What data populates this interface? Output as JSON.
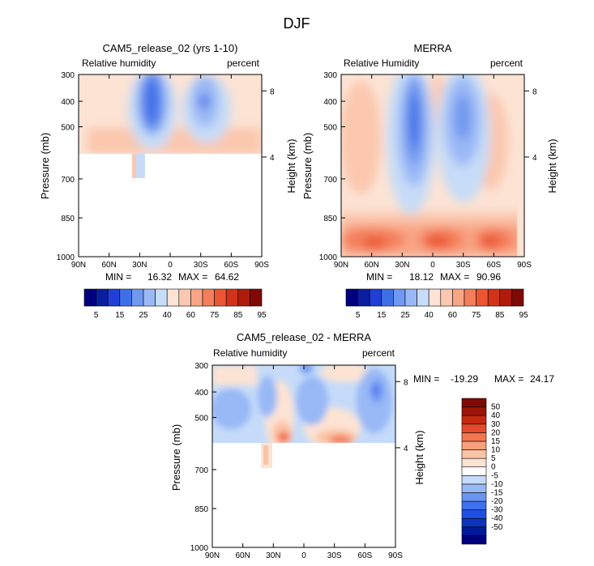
{
  "figure": {
    "title": "DJF"
  },
  "colors": {
    "rh_levels": [
      "#00007f",
      "#0a1fa0",
      "#1f3fd8",
      "#3f6fe8",
      "#6f98f0",
      "#9ab8f5",
      "#c6dcf8",
      "#fce3d4",
      "#fbc7ae",
      "#f8a585",
      "#f47e5a",
      "#ec5533",
      "#d4321a",
      "#b01c0c",
      "#7f0a04"
    ],
    "diff_levels": [
      "#00007f",
      "#001a99",
      "#0d33bb",
      "#1f4fe0",
      "#3f70ee",
      "#6b95f2",
      "#98b8f6",
      "#c5dbf9",
      "#ffffff",
      "#fde3d3",
      "#fbc3a6",
      "#f89f7c",
      "#f37552",
      "#e64a2c",
      "#c52a10",
      "#9b1504",
      "#7f0a04"
    ]
  },
  "chart_data": [
    {
      "type": "heatmap",
      "panel": "cam5",
      "title": "CAM5_release_02 (yrs 1-10)",
      "left_label": "Relative humidity",
      "right_label": "percent",
      "xlabel": "",
      "ylabel": "Pressure (mb)",
      "y2label": "Height (km)",
      "xticks": [
        "90N",
        "60N",
        "30N",
        "0",
        "30S",
        "60S",
        "90S"
      ],
      "yticks": [
        "300",
        "400",
        "500",
        "700",
        "850",
        "1000"
      ],
      "y2ticks": [
        "8",
        "4"
      ],
      "x_range": [
        90,
        -90
      ],
      "y_range": [
        300,
        1000
      ],
      "stats": {
        "min_label": "MIN =",
        "min": "16.32",
        "max_label": "MAX =",
        "max": "64.62"
      },
      "colorbar_labels": [
        "5",
        "15",
        "25",
        "40",
        "60",
        "75",
        "85",
        "95"
      ]
    },
    {
      "type": "heatmap",
      "panel": "merra",
      "title": "MERRA",
      "left_label": "Relative Humidity",
      "right_label": "percent",
      "xlabel": "",
      "ylabel": "Pressure (mb)",
      "y2label": "Height (km)",
      "xticks": [
        "90N",
        "60N",
        "30N",
        "0",
        "30S",
        "60S",
        "90S"
      ],
      "yticks": [
        "300",
        "400",
        "500",
        "700",
        "850",
        "1000"
      ],
      "y2ticks": [
        "8",
        "4"
      ],
      "x_range": [
        90,
        -90
      ],
      "y_range": [
        300,
        1000
      ],
      "stats": {
        "min_label": "MIN =",
        "min": "18.12",
        "max_label": "MAX =",
        "max": "90.96"
      },
      "colorbar_labels": [
        "5",
        "15",
        "25",
        "40",
        "60",
        "75",
        "85",
        "95"
      ]
    },
    {
      "type": "heatmap",
      "panel": "diff",
      "title": "CAM5_release_02 - MERRA",
      "left_label": "Relative humidity",
      "right_label": "percent",
      "xlabel": "",
      "ylabel": "Pressure (mb)",
      "y2label": "Height (km)",
      "xticks": [
        "90N",
        "60N",
        "30N",
        "0",
        "30S",
        "60S",
        "90S"
      ],
      "yticks": [
        "300",
        "400",
        "500",
        "700",
        "850",
        "1000"
      ],
      "y2ticks": [
        "8",
        "4"
      ],
      "x_range": [
        90,
        -90
      ],
      "y_range": [
        300,
        1000
      ],
      "stats": {
        "min_label": "MIN =",
        "min": "-19.29",
        "max_label": "MAX =",
        "max": "24.17"
      },
      "colorbar_labels": [
        "50",
        "40",
        "30",
        "20",
        "15",
        "10",
        "5",
        "0",
        "-5",
        "-10",
        "-15",
        "-20",
        "-30",
        "-40",
        "-50"
      ]
    }
  ]
}
